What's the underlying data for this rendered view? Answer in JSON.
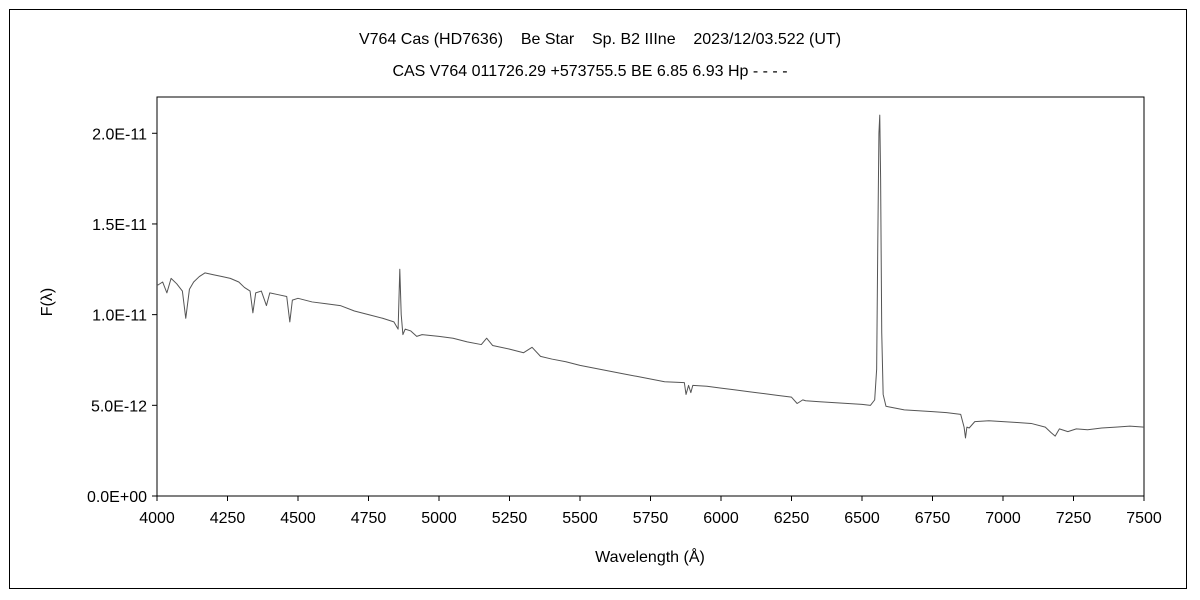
{
  "chart_data": {
    "type": "line",
    "title": "V764 Cas (HD7636)    Be Star    Sp. B2 IIIne    2023/12/03.522 (UT)",
    "subtitle": "CAS V764 011726.29 +573755.5 BE 6.85 6.93 Hp - - - -",
    "xlabel": "Wavelength (Å)",
    "ylabel": "F(λ)",
    "xlim": [
      4000,
      7500
    ],
    "ylim": [
      0,
      2.2e-11
    ],
    "grid": false,
    "x_ticks": [
      4000,
      4250,
      4500,
      4750,
      5000,
      5250,
      5500,
      5750,
      6000,
      6250,
      6500,
      6750,
      7000,
      7250,
      7500
    ],
    "x_tick_labels": [
      "4000",
      "4250",
      "4500",
      "4750",
      "5000",
      "5250",
      "5500",
      "5750",
      "6000",
      "6250",
      "6500",
      "6750",
      "7000",
      "7250",
      "7500"
    ],
    "y_ticks": [
      0,
      5e-12,
      1e-11,
      1.5e-11,
      2e-11
    ],
    "y_tick_labels": [
      "0.0E+00",
      "5.0E-12",
      "1.0E-11",
      "1.5E-11",
      "2.0E-11"
    ],
    "series": [
      {
        "color": "#555555",
        "x": [
          4000,
          4020,
          4035,
          4050,
          4070,
          4090,
          4102,
          4115,
          4130,
          4150,
          4170,
          4200,
          4230,
          4260,
          4290,
          4310,
          4330,
          4340,
          4350,
          4370,
          4388,
          4400,
          4430,
          4460,
          4471,
          4480,
          4500,
          4550,
          4600,
          4650,
          4700,
          4750,
          4800,
          4840,
          4855,
          4861,
          4866,
          4872,
          4880,
          4900,
          4921,
          4940,
          5000,
          5050,
          5100,
          5150,
          5169,
          5190,
          5250,
          5300,
          5330,
          5360,
          5400,
          5450,
          5500,
          5550,
          5600,
          5650,
          5700,
          5750,
          5800,
          5870,
          5876,
          5885,
          5893,
          5900,
          5950,
          6000,
          6050,
          6100,
          6150,
          6200,
          6250,
          6270,
          6290,
          6300,
          6350,
          6400,
          6450,
          6500,
          6530,
          6545,
          6552,
          6556,
          6560,
          6563,
          6566,
          6570,
          6575,
          6585,
          6600,
          6650,
          6700,
          6750,
          6800,
          6850,
          6862,
          6867,
          6872,
          6880,
          6900,
          6950,
          7000,
          7050,
          7100,
          7150,
          7170,
          7185,
          7200,
          7230,
          7260,
          7300,
          7350,
          7400,
          7450,
          7500
        ],
        "y": [
          1.16e-11,
          1.18e-11,
          1.12e-11,
          1.2e-11,
          1.17e-11,
          1.13e-11,
          9.8e-12,
          1.14e-11,
          1.18e-11,
          1.21e-11,
          1.23e-11,
          1.22e-11,
          1.21e-11,
          1.2e-11,
          1.18e-11,
          1.15e-11,
          1.13e-11,
          1.01e-11,
          1.12e-11,
          1.13e-11,
          1.05e-11,
          1.12e-11,
          1.11e-11,
          1.1e-11,
          9.6e-12,
          1.08e-11,
          1.09e-11,
          1.07e-11,
          1.06e-11,
          1.05e-11,
          1.02e-11,
          1e-11,
          9.8e-12,
          9.6e-12,
          9.2e-12,
          1.25e-11,
          1e-11,
          8.9e-12,
          9.2e-12,
          9.1e-12,
          8.8e-12,
          8.9e-12,
          8.8e-12,
          8.7e-12,
          8.5e-12,
          8.35e-12,
          8.7e-12,
          8.3e-12,
          8.1e-12,
          7.9e-12,
          8.2e-12,
          7.7e-12,
          7.55e-12,
          7.4e-12,
          7.2e-12,
          7.05e-12,
          6.9e-12,
          6.75e-12,
          6.6e-12,
          6.45e-12,
          6.3e-12,
          6.25e-12,
          5.6e-12,
          6.1e-12,
          5.7e-12,
          6.1e-12,
          6.05e-12,
          5.95e-12,
          5.85e-12,
          5.75e-12,
          5.65e-12,
          5.55e-12,
          5.45e-12,
          5.1e-12,
          5.3e-12,
          5.25e-12,
          5.2e-12,
          5.15e-12,
          5.1e-12,
          5.05e-12,
          5e-12,
          5.3e-12,
          7e-12,
          1.4e-11,
          2e-11,
          2.1e-11,
          1.75e-11,
          9e-12,
          5.6e-12,
          4.95e-12,
          4.9e-12,
          4.75e-12,
          4.7e-12,
          4.65e-12,
          4.6e-12,
          4.5e-12,
          3.8e-12,
          3.2e-12,
          3.8e-12,
          3.75e-12,
          4.1e-12,
          4.15e-12,
          4.1e-12,
          4.05e-12,
          4e-12,
          3.8e-12,
          3.5e-12,
          3.3e-12,
          3.7e-12,
          3.55e-12,
          3.7e-12,
          3.65e-12,
          3.75e-12,
          3.8e-12,
          3.85e-12,
          3.8e-12
        ]
      }
    ]
  }
}
